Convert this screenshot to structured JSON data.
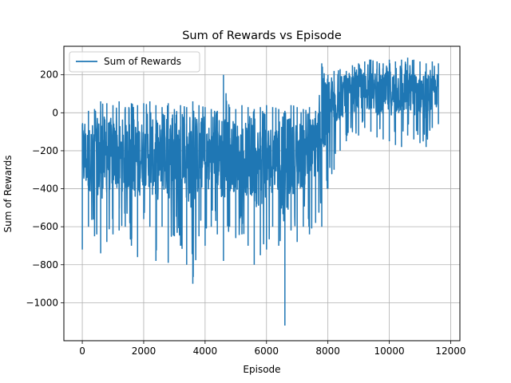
{
  "chart_data": {
    "type": "line",
    "title": "Sum of Rewards vs Episode",
    "xlabel": "Episode",
    "ylabel": "Sum of Rewards",
    "xlim": [
      -600,
      12300
    ],
    "ylim": [
      -1200,
      350
    ],
    "xticks": [
      0,
      2000,
      4000,
      6000,
      8000,
      10000,
      12000
    ],
    "xtick_labels": [
      "0",
      "2000",
      "4000",
      "6000",
      "8000",
      "10000",
      "12000"
    ],
    "yticks": [
      -1000,
      -800,
      -600,
      -400,
      -200,
      0,
      200
    ],
    "ytick_labels": [
      "−1000",
      "−800",
      "−600",
      "−400",
      "−200",
      "0",
      "200"
    ],
    "grid": true,
    "legend_position": "top-left",
    "series": [
      {
        "name": "Sum of Rewards",
        "color": "#1f77b4",
        "x": [
          0,
          200,
          400,
          600,
          800,
          1000,
          1200,
          1400,
          1600,
          1800,
          2000,
          2200,
          2400,
          2600,
          2800,
          3000,
          3200,
          3400,
          3600,
          3800,
          4000,
          4200,
          4400,
          4600,
          4800,
          5000,
          5200,
          5400,
          5600,
          5800,
          6000,
          6200,
          6400,
          6600,
          6800,
          7000,
          7200,
          7400,
          7600,
          7800,
          8000,
          8200,
          8400,
          8600,
          8800,
          9000,
          9200,
          9400,
          9600,
          9800,
          10000,
          10200,
          10400,
          10600,
          10800,
          11000,
          11200,
          11400,
          11600
        ],
        "upper": [
          -60,
          10,
          20,
          60,
          50,
          40,
          60,
          30,
          50,
          40,
          50,
          60,
          40,
          30,
          50,
          20,
          40,
          30,
          60,
          40,
          30,
          20,
          10,
          200,
          30,
          20,
          40,
          30,
          20,
          30,
          40,
          30,
          20,
          10,
          40,
          30,
          20,
          30,
          10,
          260,
          200,
          220,
          230,
          220,
          250,
          260,
          270,
          280,
          270,
          260,
          280,
          270,
          280,
          290,
          280,
          270,
          260,
          270,
          260
        ],
        "lower": [
          -720,
          -600,
          -650,
          -740,
          -680,
          -640,
          -620,
          -600,
          -700,
          -760,
          -560,
          -600,
          -780,
          -600,
          -790,
          -650,
          -700,
          -800,
          -900,
          -650,
          -700,
          -600,
          -640,
          -780,
          -600,
          -660,
          -640,
          -700,
          -800,
          -750,
          -720,
          -600,
          -700,
          -1120,
          -620,
          -680,
          -600,
          -640,
          -580,
          -600,
          -400,
          -300,
          -200,
          -150,
          -100,
          -120,
          -80,
          -100,
          -130,
          -140,
          -150,
          -170,
          -180,
          -120,
          -140,
          -160,
          -180,
          -80,
          -60
        ],
        "mid": [
          -230,
          -250,
          -220,
          -240,
          -230,
          -210,
          -230,
          -240,
          -220,
          -250,
          -210,
          -220,
          -260,
          -230,
          -240,
          -220,
          -230,
          -240,
          -260,
          -220,
          -250,
          -240,
          -220,
          -230,
          -240,
          -230,
          -220,
          -260,
          -270,
          -280,
          -260,
          -240,
          -230,
          -300,
          -250,
          -230,
          -220,
          -200,
          -180,
          -120,
          20,
          60,
          80,
          90,
          100,
          110,
          120,
          110,
          100,
          90,
          110,
          100,
          120,
          110,
          100,
          110,
          90,
          100,
          120
        ]
      }
    ]
  }
}
